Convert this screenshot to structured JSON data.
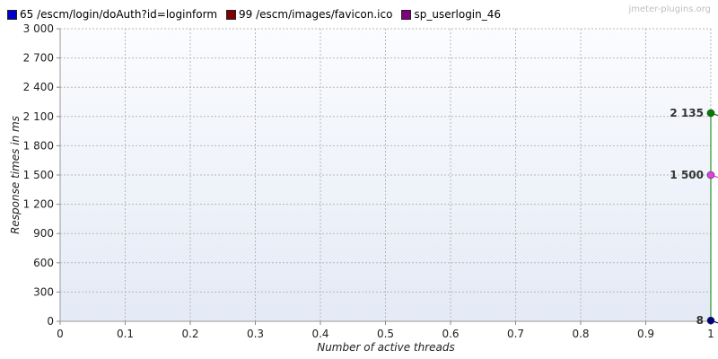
{
  "legend": [
    {
      "label": "65 /escm/login/doAuth?id=loginform",
      "color": "#0000cc"
    },
    {
      "label": "99 /escm/images/favicon.ico",
      "color": "#7f0000"
    },
    {
      "label": "sp_userlogin_46",
      "color": "#800080"
    }
  ],
  "watermark": "jmeter-plugins.org",
  "chart_data": {
    "type": "line",
    "xlabel": "Number of active threads",
    "ylabel": "Response times in ms",
    "xlim": [
      0,
      1
    ],
    "ylim": [
      0,
      3000
    ],
    "x_ticks": [
      0,
      0.1,
      0.2,
      0.3,
      0.4,
      0.5,
      0.6,
      0.7,
      0.8,
      0.9,
      1
    ],
    "x_tick_labels": [
      "0",
      "0.1",
      "0.2",
      "0.3",
      "0.4",
      "0.5",
      "0.6",
      "0.7",
      "0.8",
      "0.9",
      "1"
    ],
    "y_ticks": [
      0,
      300,
      600,
      900,
      1200,
      1500,
      1800,
      2100,
      2400,
      2700,
      3000
    ],
    "y_tick_labels": [
      "0",
      "300",
      "600",
      "900",
      "1 200",
      "1 500",
      "1 800",
      "2 100",
      "2 400",
      "2 700",
      "3 000"
    ],
    "grid": true,
    "legend_position": "top-left",
    "series": [
      {
        "color": "#008000",
        "points": [
          {
            "x": 1,
            "y": 2135
          }
        ],
        "data_label": "2 135"
      },
      {
        "color": "#e040e0",
        "points": [
          {
            "x": 1,
            "y": 1500
          }
        ],
        "data_label": "1 500"
      },
      {
        "color": "#000080",
        "points": [
          {
            "x": 1,
            "y": 8
          }
        ],
        "data_label": "8"
      }
    ]
  }
}
